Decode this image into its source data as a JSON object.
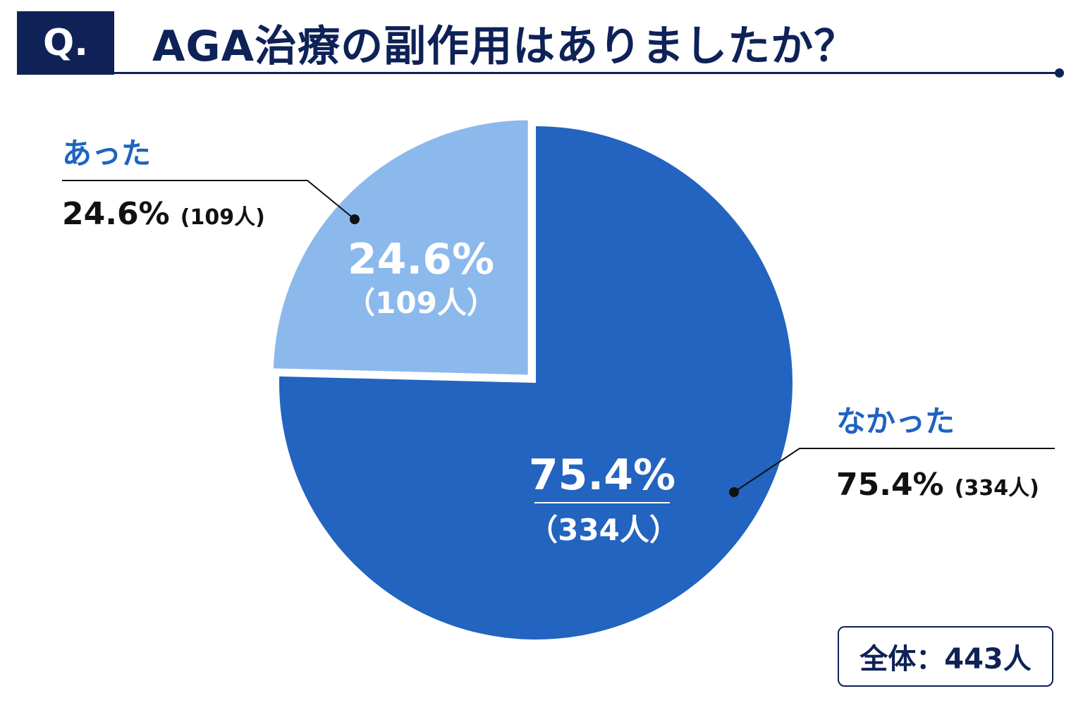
{
  "header": {
    "badge": "Q.",
    "title": "AGA治療の副作用はありましたか？"
  },
  "chart_data": {
    "type": "pie",
    "categories": [
      "あった",
      "なかった"
    ],
    "values": [
      24.6,
      75.4
    ],
    "counts": [
      109,
      334
    ],
    "value_labels": [
      "24.6%",
      "75.4%"
    ],
    "count_labels": [
      "（109人）",
      "（334人）"
    ],
    "callout_count_labels": [
      "(109人)",
      "(334人)"
    ],
    "colors": [
      "#8cb9ec",
      "#2264bf"
    ],
    "title": "AGA治療の副作用はありましたか？"
  },
  "colors": {
    "accent_navy": "#0e2257",
    "label_blue": "#1f63c0"
  },
  "total": {
    "label": "全体：443人"
  }
}
